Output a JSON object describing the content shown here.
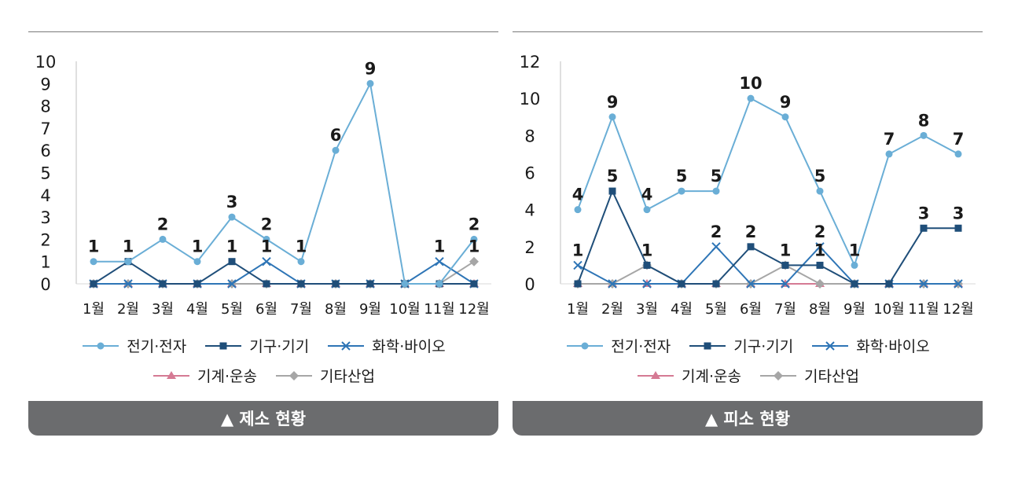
{
  "months": [
    "1월",
    "2월",
    "3월",
    "4월",
    "5월",
    "6월",
    "7월",
    "8월",
    "9월",
    "10월",
    "11월",
    "12월"
  ],
  "series_styles": [
    {
      "name": "전기·전자",
      "color": "#6aaed6",
      "marker": "circle"
    },
    {
      "name": "기구·기기",
      "color": "#1f4e79",
      "marker": "square"
    },
    {
      "name": "화학·바이오",
      "color": "#2e75b6",
      "marker": "x"
    },
    {
      "name": "기계·운송",
      "color": "#d57a94",
      "marker": "triangle"
    },
    {
      "name": "기타산업",
      "color": "#a6a6a6",
      "marker": "diamond"
    }
  ],
  "chart_data": [
    {
      "type": "line",
      "caption": "▲ 제소 현황",
      "categories": [
        "1월",
        "2월",
        "3월",
        "4월",
        "5월",
        "6월",
        "7월",
        "8월",
        "9월",
        "10월",
        "11월",
        "12월"
      ],
      "ylim": [
        0,
        10
      ],
      "yticks": [
        0,
        1,
        2,
        3,
        4,
        5,
        6,
        7,
        8,
        9,
        10
      ],
      "legend_position": "bottom",
      "series": [
        {
          "name": "전기·전자",
          "values": [
            1,
            1,
            2,
            1,
            3,
            2,
            1,
            6,
            9,
            0,
            0,
            2
          ]
        },
        {
          "name": "기구·기기",
          "values": [
            0,
            1,
            0,
            0,
            1,
            0,
            0,
            0,
            0,
            0,
            0,
            0
          ]
        },
        {
          "name": "화학·바이오",
          "values": [
            0,
            0,
            0,
            0,
            0,
            1,
            0,
            0,
            0,
            0,
            1,
            0
          ]
        },
        {
          "name": "기계·운송",
          "values": [
            0,
            0,
            0,
            0,
            0,
            0,
            0,
            0,
            0,
            0,
            0,
            0
          ]
        },
        {
          "name": "기타산업",
          "values": [
            0,
            0,
            0,
            0,
            0,
            0,
            0,
            0,
            0,
            0,
            0,
            1
          ]
        }
      ],
      "labels": [
        {
          "series": 0,
          "idx": 0,
          "text": "1"
        },
        {
          "series": 0,
          "idx": 1,
          "text": "1"
        },
        {
          "series": 0,
          "idx": 2,
          "text": "2"
        },
        {
          "series": 0,
          "idx": 3,
          "text": "1"
        },
        {
          "series": 0,
          "idx": 4,
          "text": "3"
        },
        {
          "series": 0,
          "idx": 5,
          "text": "2"
        },
        {
          "series": 0,
          "idx": 6,
          "text": "1"
        },
        {
          "series": 0,
          "idx": 7,
          "text": "6"
        },
        {
          "series": 0,
          "idx": 8,
          "text": "9"
        },
        {
          "series": 1,
          "idx": 4,
          "text": "1"
        },
        {
          "series": 2,
          "idx": 5,
          "text": "1"
        },
        {
          "series": 2,
          "idx": 10,
          "text": "1"
        },
        {
          "series": 0,
          "idx": 11,
          "text": "2"
        },
        {
          "series": 4,
          "idx": 11,
          "text": "1"
        }
      ]
    },
    {
      "type": "line",
      "caption": "▲ 피소 현황",
      "categories": [
        "1월",
        "2월",
        "3월",
        "4월",
        "5월",
        "6월",
        "7월",
        "8월",
        "9월",
        "10월",
        "11월",
        "12월"
      ],
      "ylim": [
        0,
        12
      ],
      "yticks": [
        0,
        2,
        4,
        6,
        8,
        10,
        12
      ],
      "legend_position": "bottom",
      "series": [
        {
          "name": "전기·전자",
          "values": [
            4,
            9,
            4,
            5,
            5,
            10,
            9,
            5,
            1,
            7,
            8,
            7
          ]
        },
        {
          "name": "기구·기기",
          "values": [
            0,
            5,
            1,
            0,
            0,
            2,
            1,
            1,
            0,
            0,
            3,
            3
          ]
        },
        {
          "name": "화학·바이오",
          "values": [
            1,
            0,
            0,
            0,
            2,
            0,
            0,
            2,
            0,
            0,
            0,
            0
          ]
        },
        {
          "name": "기계·운송",
          "values": [
            0,
            0,
            0,
            0,
            0,
            0,
            0,
            0,
            0,
            0,
            0,
            0
          ]
        },
        {
          "name": "기타산업",
          "values": [
            0,
            0,
            1,
            0,
            0,
            0,
            1,
            0,
            0,
            0,
            0,
            0
          ]
        }
      ],
      "labels": [
        {
          "series": 0,
          "idx": 0,
          "text": "4"
        },
        {
          "series": 0,
          "idx": 1,
          "text": "9"
        },
        {
          "series": 0,
          "idx": 2,
          "text": "4"
        },
        {
          "series": 0,
          "idx": 3,
          "text": "5"
        },
        {
          "series": 0,
          "idx": 4,
          "text": "5"
        },
        {
          "series": 0,
          "idx": 5,
          "text": "10"
        },
        {
          "series": 0,
          "idx": 6,
          "text": "9"
        },
        {
          "series": 0,
          "idx": 7,
          "text": "5"
        },
        {
          "series": 0,
          "idx": 8,
          "text": "1"
        },
        {
          "series": 0,
          "idx": 9,
          "text": "7"
        },
        {
          "series": 0,
          "idx": 10,
          "text": "8"
        },
        {
          "series": 0,
          "idx": 11,
          "text": "7"
        },
        {
          "series": 2,
          "idx": 0,
          "text": "1"
        },
        {
          "series": 1,
          "idx": 1,
          "text": "5"
        },
        {
          "series": 1,
          "idx": 2,
          "text": "1"
        },
        {
          "series": 2,
          "idx": 4,
          "text": "2"
        },
        {
          "series": 1,
          "idx": 5,
          "text": "2"
        },
        {
          "series": 1,
          "idx": 6,
          "text": "1"
        },
        {
          "series": 2,
          "idx": 7,
          "text": "2"
        },
        {
          "series": 1,
          "idx": 7,
          "text": "1"
        },
        {
          "series": 1,
          "idx": 10,
          "text": "3"
        },
        {
          "series": 1,
          "idx": 11,
          "text": "3"
        }
      ]
    }
  ]
}
